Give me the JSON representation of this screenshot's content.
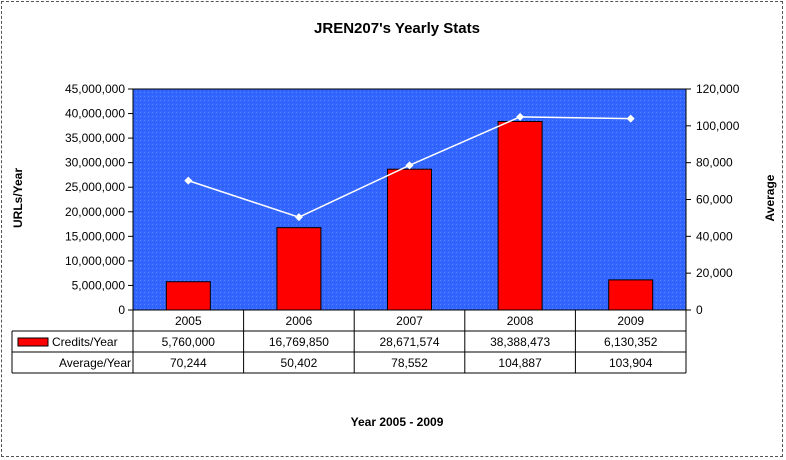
{
  "chart_data": {
    "type": "bar",
    "title": "JREN207's Yearly Stats",
    "xlabel": "Year 2005 - 2009",
    "ylabel": "URLs/Year",
    "y2label": "Average",
    "categories": [
      "2005",
      "2006",
      "2007",
      "2008",
      "2009"
    ],
    "ylim": [
      0,
      45000000
    ],
    "y2lim": [
      0,
      120000
    ],
    "yticks": [
      "0",
      "5,000,000",
      "10,000,000",
      "15,000,000",
      "20,000,000",
      "25,000,000",
      "30,000,000",
      "35,000,000",
      "40,000,000",
      "45,000,000"
    ],
    "y2ticks": [
      "0",
      "20,000",
      "40,000",
      "60,000",
      "80,000",
      "100,000",
      "120,000"
    ],
    "series": [
      {
        "name": "Credits/Year",
        "type": "bar",
        "axis": "left",
        "color": "#ff0000",
        "values": [
          5760000,
          16769850,
          28671574,
          38388473,
          6130352
        ],
        "labels": [
          "5,760,000",
          "16,769,850",
          "28,671,574",
          "38,388,473",
          "6,130,352"
        ]
      },
      {
        "name": "Average/Year",
        "type": "line",
        "axis": "right",
        "color": "#ffffff",
        "values": [
          70244,
          50402,
          78552,
          104887,
          103904
        ],
        "labels": [
          "70,244",
          "50,402",
          "78,552",
          "104,887",
          "103,904"
        ]
      }
    ],
    "plot_background": "#3366ff",
    "grid": false,
    "legend": "data-table"
  }
}
